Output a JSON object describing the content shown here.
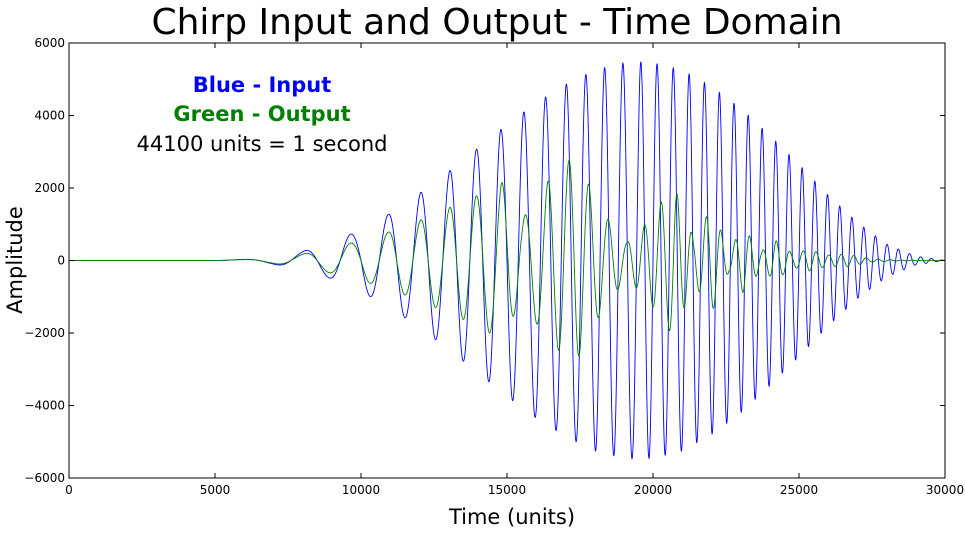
{
  "chart_data": {
    "type": "line",
    "title": "Chirp Input and Output - Time Domain",
    "xlabel": "Time (units)",
    "ylabel": "Amplitude",
    "xlim": [
      0,
      30000
    ],
    "ylim": [
      -6000,
      6000
    ],
    "x_ticks": [
      0,
      5000,
      10000,
      15000,
      20000,
      25000,
      30000
    ],
    "y_ticks": [
      -6000,
      -4000,
      -2000,
      0,
      2000,
      4000,
      6000
    ],
    "grid": false,
    "annotations": [
      {
        "text": "Blue - Input",
        "color": "#0000ff",
        "bold": true
      },
      {
        "text": "Green - Output",
        "color": "#007f00",
        "bold": true
      },
      {
        "text": "44100 units = 1 second",
        "color": "#000000",
        "bold": false
      }
    ],
    "series": [
      {
        "color": "#0000ff",
        "envelope": {
          "x": [
            0,
            5000,
            6000,
            7000,
            8000,
            9000,
            10000,
            11000,
            12000,
            13000,
            14000,
            15000,
            16000,
            17000,
            18000,
            19000,
            19500,
            20000,
            21000,
            22000,
            23000,
            24000,
            25000,
            26000,
            27000,
            28000,
            29000,
            30000
          ],
          "y": [
            0,
            0,
            30,
            100,
            250,
            500,
            850,
            1300,
            1850,
            2450,
            3100,
            3750,
            4350,
            4850,
            5250,
            5450,
            5480,
            5450,
            5250,
            4800,
            4200,
            3450,
            2650,
            1800,
            1050,
            450,
            120,
            0
          ]
        },
        "cycles": [
          0,
          0,
          0.3,
          0.7,
          1.2,
          1.8,
          2.5,
          3.3,
          4.2,
          5.2,
          6.3,
          7.5,
          8.8,
          10.2,
          11.7,
          13.3,
          14.1,
          15.0,
          16.8,
          18.7,
          20.7,
          22.8,
          25.0,
          27.3,
          29.7,
          32.2,
          34.8,
          37.5
        ]
      },
      {
        "color": "#007f00",
        "envelope": {
          "x": [
            0,
            5000,
            6000,
            7000,
            8000,
            9000,
            10000,
            11000,
            12000,
            13000,
            14000,
            14800,
            15500,
            16300,
            17300,
            18300,
            19100,
            19800,
            20700,
            21400,
            22000,
            22600,
            23100,
            23700,
            24200,
            24800,
            25300,
            26000,
            26600,
            27500,
            28500,
            30000
          ],
          "y": [
            0,
            0,
            25,
            80,
            180,
            350,
            550,
            800,
            1100,
            1450,
            1800,
            2200,
            1100,
            2100,
            2900,
            1300,
            500,
            1050,
            2100,
            600,
            1450,
            300,
            900,
            250,
            550,
            180,
            300,
            150,
            180,
            40,
            10,
            0
          ]
        },
        "cycles": [
          0,
          0,
          0.3,
          0.7,
          1.2,
          1.8,
          2.5,
          3.3,
          4.2,
          5.2,
          6.3,
          7.2,
          8.1,
          9.1,
          10.5,
          12.0,
          13.2,
          14.4,
          16.0,
          17.4,
          18.6,
          19.8,
          20.8,
          22.1,
          23.2,
          24.5,
          25.6,
          27.2,
          28.6,
          30.7,
          33.2,
          37.5
        ]
      }
    ]
  }
}
